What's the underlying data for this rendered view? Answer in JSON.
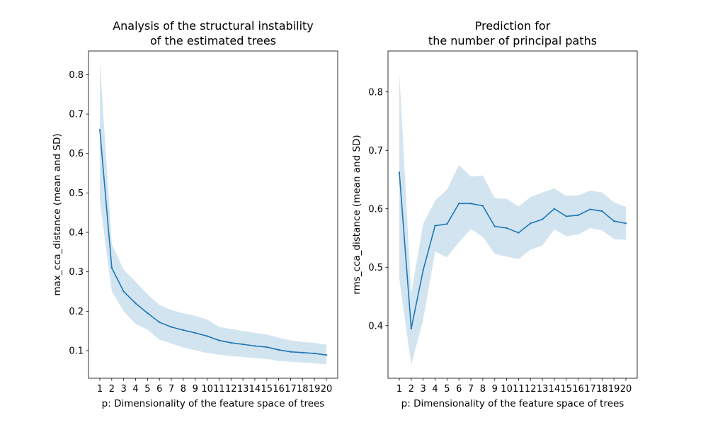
{
  "chart_data": [
    {
      "type": "line",
      "title": "Analysis of the structural instability\nof the estimated trees",
      "xlabel": "p: Dimensionality of the feature space of trees",
      "ylabel": "max_cca_distance (mean and SD)",
      "x": [
        1,
        2,
        3,
        4,
        5,
        6,
        7,
        8,
        9,
        10,
        11,
        12,
        13,
        14,
        15,
        16,
        17,
        18,
        19,
        20
      ],
      "x_tick_labels": [
        "1",
        "2",
        "3",
        "4",
        "5",
        "6",
        "7",
        "8",
        "9",
        "10",
        "11",
        "12",
        "13",
        "14",
        "15",
        "16",
        "17",
        "18",
        "19",
        "20"
      ],
      "ylim": [
        0.03,
        0.86
      ],
      "y_ticks": [
        0.1,
        0.2,
        0.3,
        0.4,
        0.5,
        0.6,
        0.7,
        0.8
      ],
      "y_tick_labels": [
        "0.1",
        "0.2",
        "0.3",
        "0.4",
        "0.5",
        "0.6",
        "0.7",
        "0.8"
      ],
      "grid": false,
      "series": [
        {
          "mean": [
            0.66,
            0.31,
            0.25,
            0.22,
            0.195,
            0.172,
            0.16,
            0.152,
            0.145,
            0.137,
            0.126,
            0.12,
            0.116,
            0.112,
            0.109,
            0.102,
            0.097,
            0.095,
            0.093,
            0.089
          ],
          "lower": [
            0.48,
            0.25,
            0.2,
            0.168,
            0.153,
            0.128,
            0.118,
            0.108,
            0.101,
            0.094,
            0.09,
            0.086,
            0.084,
            0.081,
            0.079,
            0.074,
            0.072,
            0.07,
            0.068,
            0.065
          ],
          "upper": [
            0.835,
            0.37,
            0.305,
            0.275,
            0.243,
            0.216,
            0.203,
            0.195,
            0.188,
            0.179,
            0.16,
            0.155,
            0.15,
            0.145,
            0.141,
            0.133,
            0.126,
            0.122,
            0.12,
            0.115
          ]
        }
      ]
    },
    {
      "type": "line",
      "title": "Prediction for\nthe number of principal paths",
      "xlabel": "p: Dimensionality of the feature space of trees",
      "ylabel": "rms_cca_distance (mean and SD)",
      "x": [
        1,
        2,
        3,
        4,
        5,
        6,
        7,
        8,
        9,
        10,
        11,
        12,
        13,
        14,
        15,
        16,
        17,
        18,
        19,
        20
      ],
      "x_tick_labels": [
        "1",
        "2",
        "3",
        "4",
        "5",
        "6",
        "7",
        "8",
        "9",
        "10",
        "11",
        "12",
        "13",
        "14",
        "15",
        "16",
        "17",
        "18",
        "19",
        "20"
      ],
      "ylim": [
        0.31,
        0.87
      ],
      "y_ticks": [
        0.4,
        0.5,
        0.6,
        0.7,
        0.8
      ],
      "y_tick_labels": [
        "0.4",
        "0.5",
        "0.6",
        "0.7",
        "0.8"
      ],
      "grid": false,
      "series": [
        {
          "mean": [
            0.662,
            0.395,
            0.495,
            0.571,
            0.574,
            0.609,
            0.609,
            0.605,
            0.57,
            0.567,
            0.559,
            0.575,
            0.582,
            0.6,
            0.587,
            0.589,
            0.599,
            0.596,
            0.579,
            0.575
          ],
          "lower": [
            0.48,
            0.333,
            0.41,
            0.527,
            0.517,
            0.543,
            0.565,
            0.552,
            0.523,
            0.518,
            0.514,
            0.53,
            0.537,
            0.565,
            0.553,
            0.556,
            0.567,
            0.563,
            0.548,
            0.547
          ],
          "upper": [
            0.833,
            0.455,
            0.574,
            0.614,
            0.633,
            0.675,
            0.655,
            0.657,
            0.618,
            0.617,
            0.604,
            0.62,
            0.628,
            0.635,
            0.622,
            0.623,
            0.631,
            0.628,
            0.611,
            0.603
          ]
        }
      ]
    }
  ],
  "colors": {
    "line": "#1f77b4",
    "band": "#1f77b4",
    "band_opacity": 0.2
  }
}
